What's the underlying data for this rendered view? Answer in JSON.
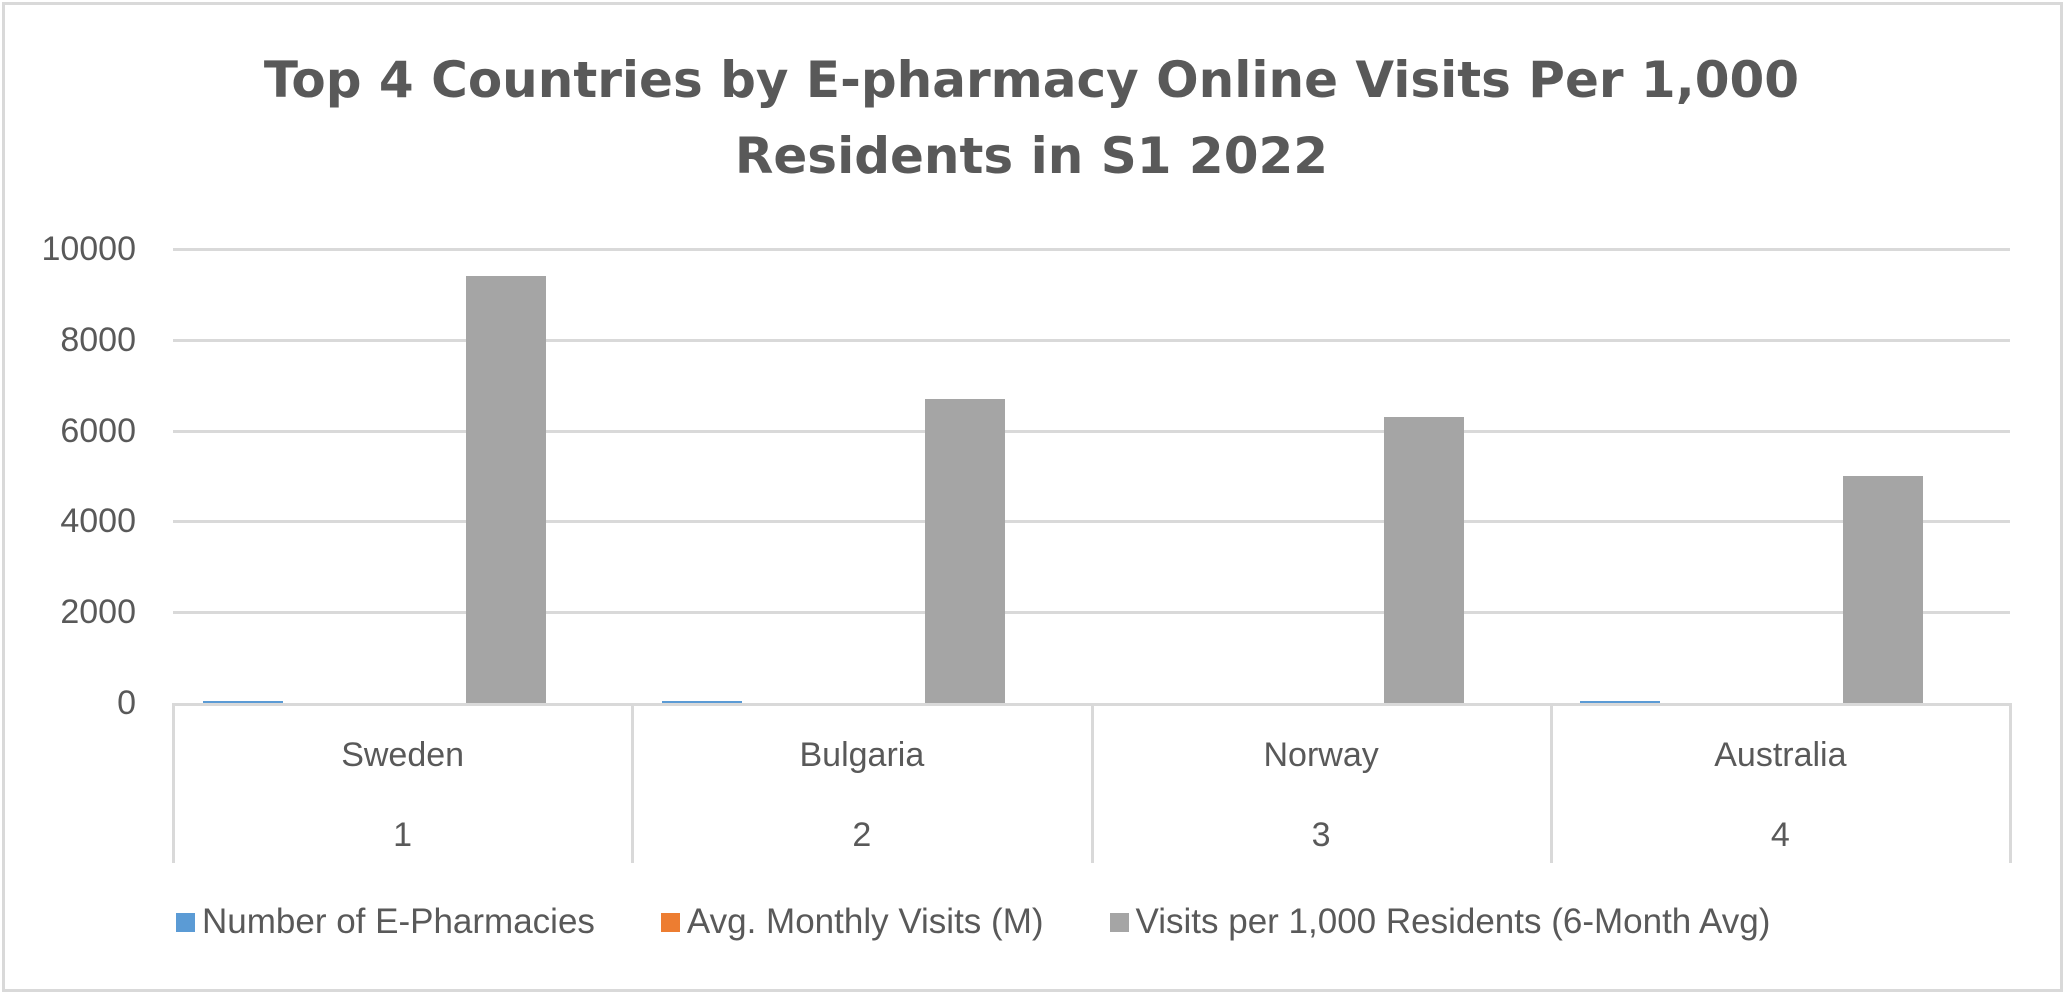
{
  "chart_data": {
    "type": "bar",
    "title": "Top 4 Countries by E-pharmacy Online Visits Per 1,000 Residents in S1 2022",
    "title_lines": [
      "Top 4 Countries by E-pharmacy Online Visits Per 1,000",
      "Residents in S1 2022"
    ],
    "categories": [
      "Sweden",
      "Bulgaria",
      "Norway",
      "Australia"
    ],
    "category_ranks": [
      "1",
      "2",
      "3",
      "4"
    ],
    "series": [
      {
        "name": "Number of E-Pharmacies",
        "color": "#5b9bd5",
        "values": [
          40,
          40,
          0,
          40
        ]
      },
      {
        "name": "Avg. Monthly Visits (M)",
        "color": "#ed7d31",
        "values": [
          0,
          0,
          0,
          0
        ]
      },
      {
        "name": "Visits per 1,000 Residents (6-Month Avg)",
        "color": "#a5a5a5",
        "values": [
          9400,
          6700,
          6300,
          5000
        ]
      }
    ],
    "xlabel": "",
    "ylabel": "",
    "ylim": [
      0,
      10000
    ],
    "yticks": [
      "10000",
      "8000",
      "6000",
      "4000",
      "2000",
      "0"
    ],
    "grid": true,
    "legend_position": "bottom"
  }
}
